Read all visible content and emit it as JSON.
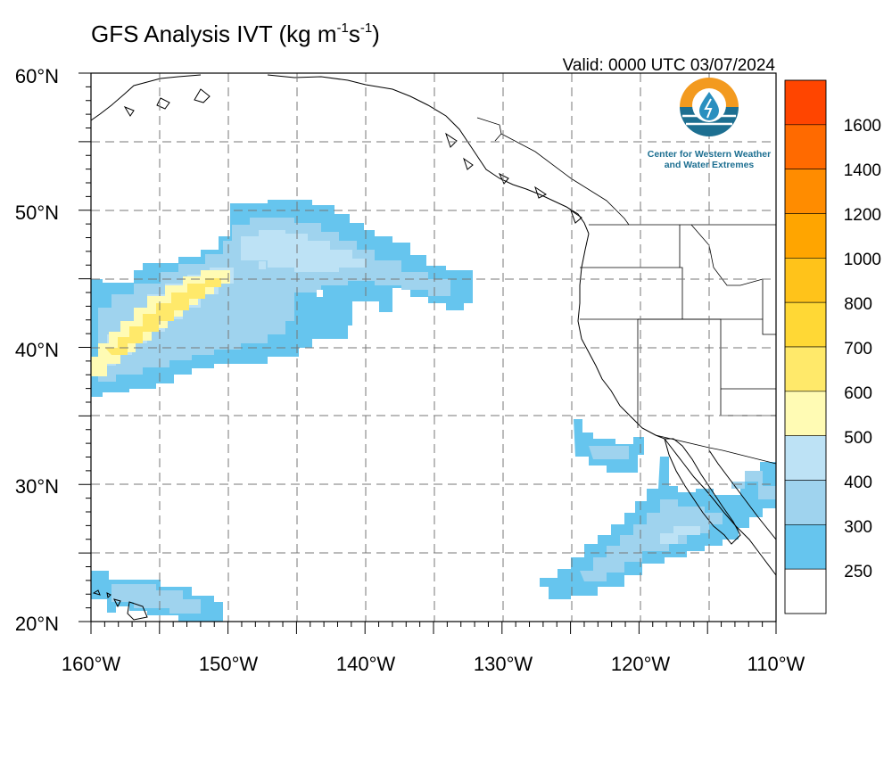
{
  "title": {
    "main": "GFS Analysis IVT (kg m",
    "sup1": "-1",
    "mid": "s",
    "sup2": "-1",
    "end": ")"
  },
  "valid_time": "Valid: 0000 UTC 03/07/2024",
  "logo": {
    "line1": "Center for Western Weather",
    "line2": "and Water Extremes",
    "icon": "water-drop-sun-icon"
  },
  "axes": {
    "lat_labels": [
      "60°N",
      "50°N",
      "40°N",
      "30°N",
      "20°N"
    ],
    "lon_labels": [
      "160°W",
      "150°W",
      "140°W",
      "130°W",
      "120°W",
      "110°W"
    ],
    "lat_range": [
      20,
      60
    ],
    "lon_range": [
      -160,
      -110
    ]
  },
  "colorbar": {
    "labels": [
      "1600",
      "1400",
      "1200",
      "1000",
      "800",
      "700",
      "600",
      "500",
      "400",
      "300",
      "250"
    ],
    "bins": [
      {
        "color": "#ff4500"
      },
      {
        "color": "#ff6a00"
      },
      {
        "color": "#ff8c00"
      },
      {
        "color": "#ffa500"
      },
      {
        "color": "#ffc31a"
      },
      {
        "color": "#ffd835"
      },
      {
        "color": "#ffe96a"
      },
      {
        "color": "#fffbb4"
      },
      {
        "color": "#bde2f5"
      },
      {
        "color": "#9fd3ee"
      },
      {
        "color": "#66c5ee"
      },
      {
        "color": "#ffffff"
      }
    ]
  },
  "colors": {
    "ivt_250": "#66c5ee",
    "ivt_300": "#9fd3ee",
    "ivt_400": "#bde2f5",
    "ivt_500": "#fffbb4",
    "ivt_600": "#ffe96a"
  }
}
